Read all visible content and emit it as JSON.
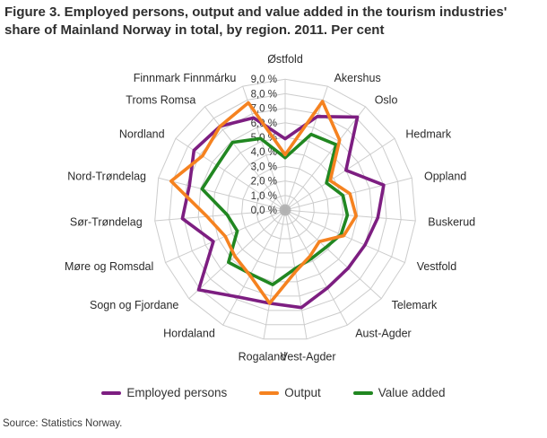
{
  "title": "Figure 3. Employed persons, output and value added in the tourism industries' share of Mainland Norway in total, by region. 2011. Per cent",
  "source": "Source: Statistics Norway.",
  "legend": [
    {
      "label": "Employed persons",
      "color": "#7D1E81"
    },
    {
      "label": "Output",
      "color": "#F58220"
    },
    {
      "label": "Value added",
      "color": "#218721"
    }
  ],
  "chart_data": {
    "type": "radar",
    "title": "Figure 3. Employed persons, output and value added in the tourism industries' share of Mainland Norway in total, by region. 2011. Per cent",
    "categories": [
      "Østfold",
      "Akershus",
      "Oslo",
      "Hedmark",
      "Oppland",
      "Buskerud",
      "Vestfold",
      "Telemark",
      "Aust-Agder",
      "Vest-Agder",
      "Rogaland",
      "Hordaland",
      "Sogn og Fjordane",
      "Møre og Romsdal",
      "Sør-Trøndelag",
      "Nord-Trøndelag",
      "Nordland",
      "Troms Romsa",
      "Finnmark Finnmárku"
    ],
    "series": [
      {
        "name": "Employed persons",
        "color": "#7D1E81",
        "values": [
          4.9,
          6.8,
          8.1,
          5.0,
          7.0,
          6.4,
          6.0,
          5.9,
          6.1,
          6.8,
          6.5,
          6.8,
          8.1,
          5.4,
          7.1,
          6.8,
          7.5,
          7.3,
          6.7
        ]
      },
      {
        "name": "Output",
        "color": "#F58220",
        "values": [
          3.8,
          7.9,
          6.1,
          3.7,
          4.6,
          4.9,
          4.4,
          3.2,
          3.6,
          4.3,
          6.5,
          5.1,
          4.7,
          4.5,
          5.4,
          8.1,
          6.8,
          7.3,
          7.8
        ]
      },
      {
        "name": "Value added",
        "color": "#218721",
        "values": [
          3.6,
          5.5,
          5.7,
          3.4,
          4.1,
          4.3,
          4.2,
          3.8,
          3.8,
          4.1,
          5.2,
          5.0,
          5.3,
          3.6,
          4.0,
          5.9,
          5.6,
          5.9,
          5.2
        ]
      }
    ],
    "axis": {
      "min": 0,
      "max": 9,
      "step": 1,
      "unit": "per cent",
      "tick_labels": [
        "0,0 %",
        "1,0 %",
        "2,0 %",
        "3,0 %",
        "4,0 %",
        "5,0 %",
        "6,0 %",
        "7,0 %",
        "8,0 %",
        "9,0 %"
      ]
    },
    "grid": {
      "shape": "polygon",
      "on": true,
      "color": "#cccccc"
    },
    "legend_position": "bottom"
  }
}
